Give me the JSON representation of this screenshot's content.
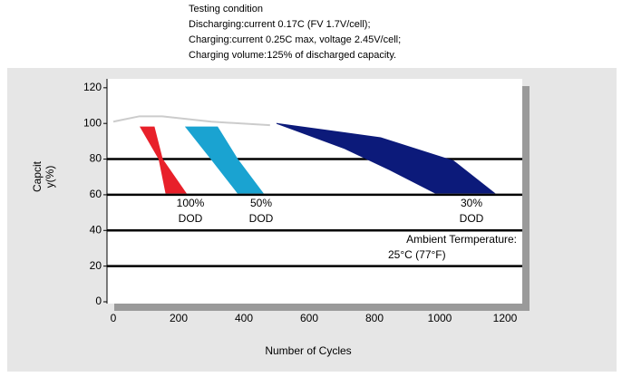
{
  "chart_data": {
    "type": "area",
    "title_lines": [
      "Testing condition",
      "Discharging:current 0.17C (FV 1.7V/cell);",
      "Charging:current 0.25C max, voltage 2.45V/cell;",
      "Charging volume:125% of discharged capacity."
    ],
    "xlabel": "Number of Cycles",
    "ylabel_lines": [
      "Capcit",
      "y(%)"
    ],
    "xlim": [
      0,
      1250
    ],
    "xticks": [
      0,
      200,
      400,
      600,
      800,
      1000,
      1200
    ],
    "ylim": [
      0,
      125
    ],
    "yticks": [
      0,
      20,
      40,
      60,
      80,
      100,
      120
    ],
    "grid_values": [
      20,
      40,
      60,
      80
    ],
    "series": [
      {
        "name": "100% DOD",
        "color": "#e8202a",
        "x": [
          83,
          125,
          150,
          222,
          161,
          140
        ],
        "values": [
          98,
          98,
          80,
          61,
          61,
          80
        ]
      },
      {
        "name": "50% DOD",
        "color": "#1aa3d1",
        "x": [
          222,
          319,
          380,
          458,
          381,
          300
        ],
        "values": [
          98,
          98,
          80,
          61,
          61,
          80
        ]
      },
      {
        "name": "30% DOD",
        "color": "#0c1a7a",
        "x": [
          500,
          819,
          1042,
          1167,
          986,
          847,
          708
        ],
        "values": [
          100,
          92,
          79,
          61,
          61,
          74,
          86
        ]
      }
    ],
    "initial_line": {
      "color": "#cccccc",
      "x": [
        0,
        80,
        150,
        300,
        480
      ],
      "values": [
        101,
        104,
        104,
        101,
        99
      ]
    },
    "annotations": [
      [
        "100%",
        "DOD"
      ],
      [
        "50%",
        "DOD"
      ],
      [
        "30%",
        "DOD"
      ]
    ],
    "ambient": [
      "Ambient Termperature:",
      "25°C (77°F)"
    ]
  }
}
